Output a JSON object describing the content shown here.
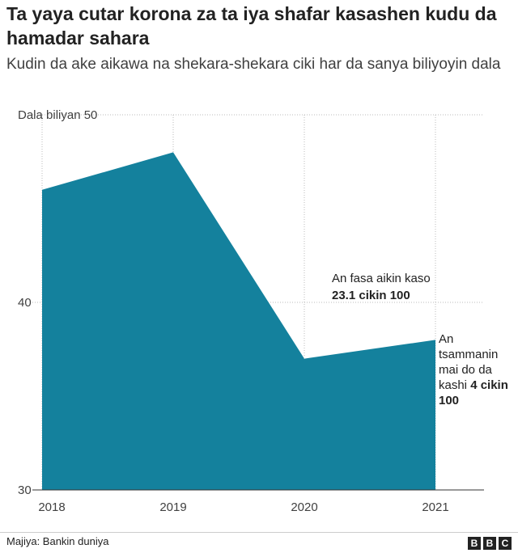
{
  "header": {
    "title": "Ta yaya cutar korona za ta iya shafar kasashen kudu da hamadar sahara",
    "subtitle": "Kudin da ake aikawa na shekara-shekara ciki har da sanya biliyoyin dala"
  },
  "chart_data": {
    "type": "area",
    "x": [
      "2018",
      "2019",
      "2020",
      "2021"
    ],
    "values": [
      46,
      48,
      37,
      38
    ],
    "y_unit_label": "Dala biliyan 50",
    "yticks": [
      30,
      40,
      50
    ],
    "ytick_labels": [
      "30",
      "40",
      "Dala biliyan 50"
    ],
    "ylim": [
      30,
      50
    ],
    "grid": "vertical dotted lines at each year, horizontal dotted lines at y ticks",
    "color": "#14819d",
    "annotations": [
      {
        "x": "2020",
        "lines": [
          [
            {
              "t": "An fasa aikin kaso",
              "b": false
            }
          ],
          [
            {
              "t": "23.1 cikin 100",
              "b": true
            }
          ]
        ]
      },
      {
        "x": "2021",
        "lines": [
          [
            {
              "t": "An",
              "b": false
            }
          ],
          [
            {
              "t": "tsammanin",
              "b": false
            }
          ],
          [
            {
              "t": "mai do da",
              "b": false
            }
          ],
          [
            {
              "t": "kashi ",
              "b": false
            },
            {
              "t": "4 cikin",
              "b": true
            }
          ],
          [
            {
              "t": "100",
              "b": true
            }
          ]
        ]
      }
    ]
  },
  "footer": {
    "source": "Majiya: Bankin duniya",
    "logo_letters": [
      "B",
      "B",
      "C"
    ]
  }
}
